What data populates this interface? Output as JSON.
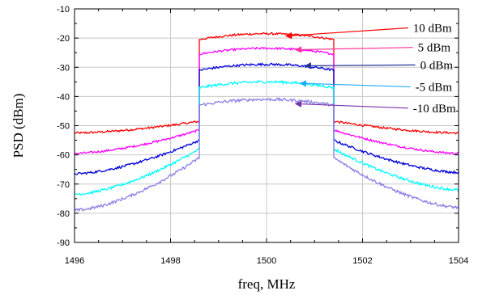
{
  "chart_data": {
    "type": "line",
    "title": "",
    "xlabel": "freq, MHz",
    "ylabel": "PSD (dBm)",
    "xlim": [
      1496,
      1504
    ],
    "ylim": [
      -90,
      -10
    ],
    "x_ticks": [
      "1496",
      "1498",
      "1500",
      "1502",
      "1504"
    ],
    "y_ticks": [
      "-10",
      "-20",
      "-30",
      "-40",
      "-50",
      "-60",
      "-70",
      "-80",
      "-90"
    ],
    "grid": true,
    "band": {
      "start": 1498.6,
      "end": 1501.4
    },
    "series": [
      {
        "name": "10 dBm",
        "color": "#ff0000",
        "edge_left": -52.5,
        "shoulder": -48.5,
        "inband_edge": -20.5,
        "inband_center": -18.5,
        "edge_right": -52.5,
        "noise": 0.35
      },
      {
        "name": "5 dBm",
        "color": "#ff00ff",
        "edge_left": -59.5,
        "shoulder": -51.5,
        "inband_edge": -25.5,
        "inband_center": -23.5,
        "edge_right": -59.5,
        "noise": 0.35
      },
      {
        "name": "0 dBm",
        "color": "#0000dd",
        "edge_left": -66.5,
        "shoulder": -55.0,
        "inband_edge": -31.0,
        "inband_center": -29.0,
        "edge_right": -66.0,
        "noise": 0.4
      },
      {
        "name": "-5 dBm",
        "color": "#00ffff",
        "edge_left": -73.5,
        "shoulder": -58.0,
        "inband_edge": -37.0,
        "inband_center": -35.0,
        "edge_right": -72.0,
        "noise": 0.45
      },
      {
        "name": "-10 dBm",
        "color": "#8a7fe6",
        "edge_left": -79.0,
        "shoulder": -61.0,
        "inband_edge": -43.0,
        "inband_center": -41.0,
        "edge_right": -78.0,
        "noise": 0.5
      }
    ],
    "annotations": [
      {
        "label": "10 dBm",
        "arrow_color": "#ff0000",
        "point": [
          1500.4,
          -19.3
        ]
      },
      {
        "label": "5 dBm",
        "arrow_color": "#ff3399",
        "point": [
          1500.6,
          -24.0
        ]
      },
      {
        "label": "0 dBm",
        "arrow_color": "#223399",
        "point": [
          1500.8,
          -29.5
        ]
      },
      {
        "label": "-5 dBm",
        "arrow_color": "#22aaff",
        "point": [
          1500.7,
          -35.5
        ]
      },
      {
        "label": "-10 dBm",
        "arrow_color": "#7733aa",
        "point": [
          1500.6,
          -42.5
        ]
      }
    ]
  }
}
